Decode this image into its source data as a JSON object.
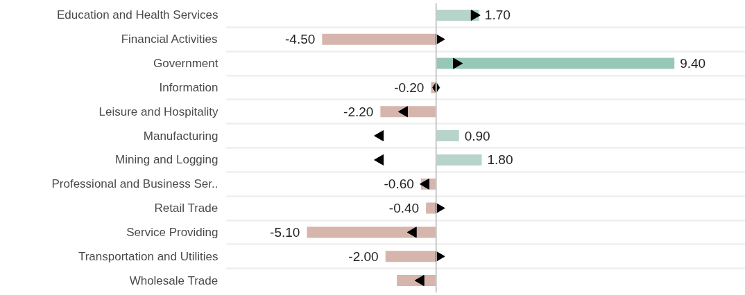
{
  "chart_data": {
    "type": "bar",
    "orientation": "horizontal",
    "categories": [
      "Education and Health Services",
      "Financial Activities",
      "Government",
      "Information",
      "Leisure and Hospitality",
      "Manufacturing",
      "Mining and Logging",
      "Professional and Business Ser..",
      "Retail Trade",
      "Service Providing",
      "Transportation and Utilities",
      "Wholesale Trade"
    ],
    "series": [
      {
        "values": [
          1.7,
          -4.5,
          9.4,
          -0.2,
          -2.2,
          0.9,
          1.8,
          -0.6,
          -0.4,
          -5.1,
          -2.0,
          -1.55
        ],
        "colors": [
          "#b7d4ca",
          "#d6b6ac",
          "#97c7b7",
          "#d6b6ac",
          "#d6b6ac",
          "#b7d4ca",
          "#b7d4ca",
          "#d6b6ac",
          "#d6b6ac",
          "#d6b6ac",
          "#d6b6ac",
          "#d6b6ac"
        ],
        "value_labels": [
          "1.70",
          "-4.50",
          "9.40",
          "-0.20",
          "-2.20",
          "0.90",
          "1.80",
          "-0.60",
          "-0.40",
          "-5.10",
          "-2.00",
          null
        ]
      },
      {
        "type": "scatter",
        "marker": "triangle",
        "color": "#000000",
        "values": [
          1.5,
          0.1,
          0.8,
          0,
          -1.25,
          -2.2,
          -2.2,
          -0.4,
          0.1,
          -0.9,
          0.1,
          -0.6
        ]
      }
    ],
    "xlim": [
      -8.3,
      12.2
    ],
    "tick_labels": "y",
    "grid": "y",
    "ref_lines": [
      {
        "axis": "x",
        "value": 0,
        "color": "#c8c8c8"
      }
    ]
  }
}
